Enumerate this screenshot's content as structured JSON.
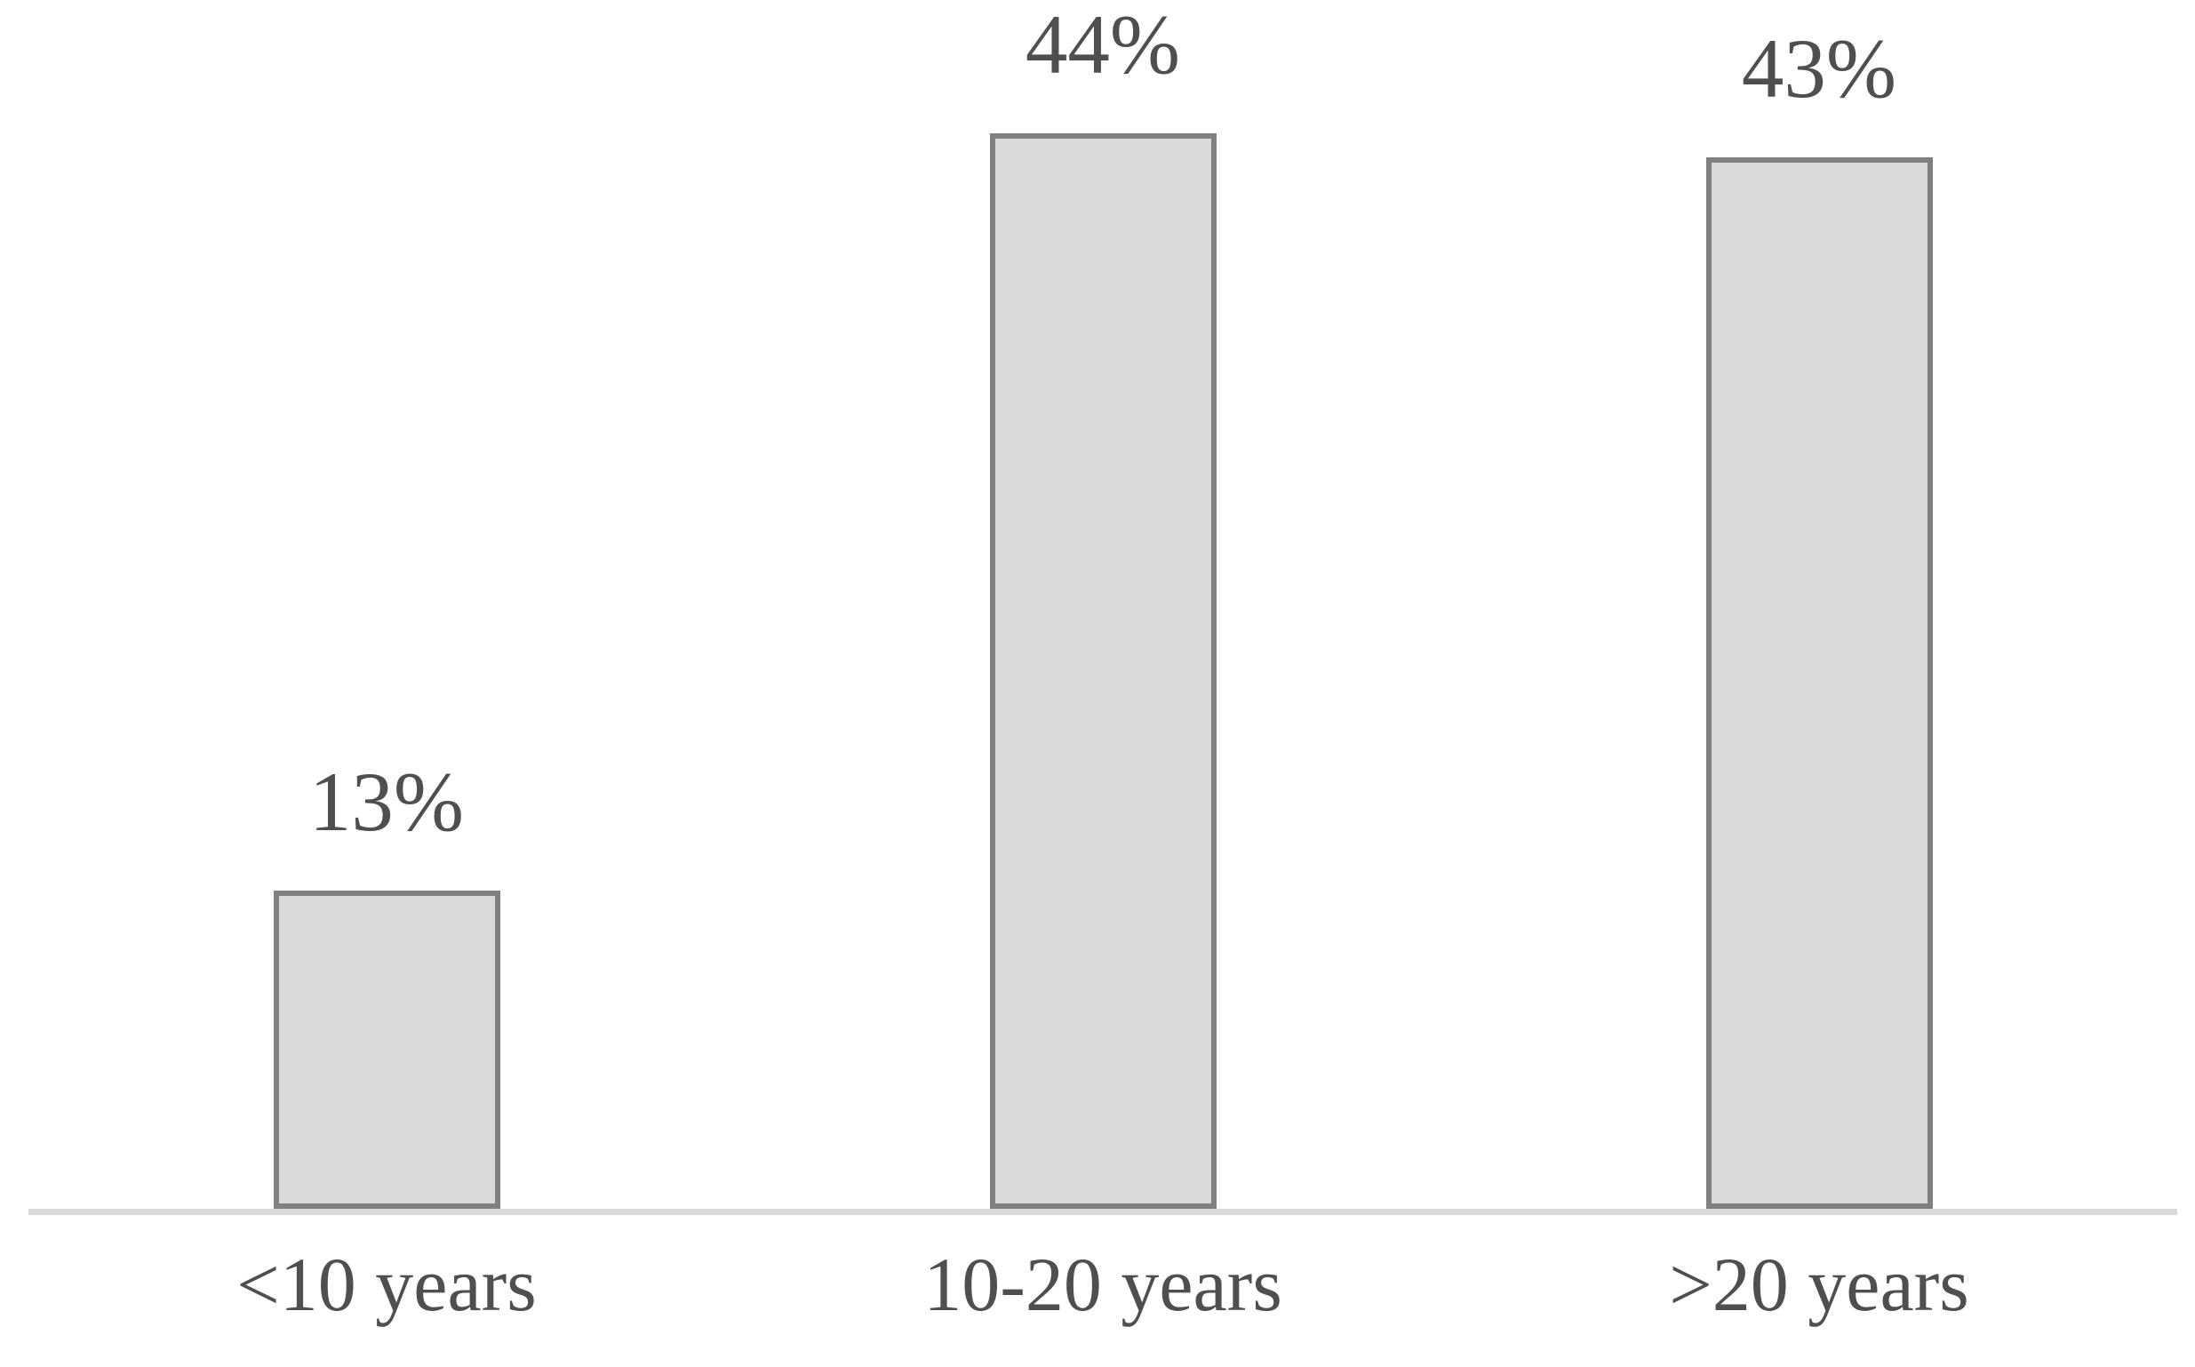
{
  "chart_data": {
    "type": "bar",
    "title": "",
    "xlabel": "",
    "ylabel": "",
    "categories": [
      "<10 years",
      "10-20 years",
      ">20 years"
    ],
    "values": [
      13,
      44,
      43
    ],
    "data_labels": [
      "13%",
      "44%",
      "43%"
    ],
    "ylim": [
      0,
      50
    ],
    "grid": false,
    "legend": false,
    "axes_visible": "x-axis baseline only, no ticks, no y-axis",
    "colors": {
      "bar_fill": "#d9d9d9",
      "bar_border": "#808080",
      "axis_line": "#d9d9d9",
      "label_text": "#4f4f4f",
      "background": "#ffffff"
    }
  }
}
